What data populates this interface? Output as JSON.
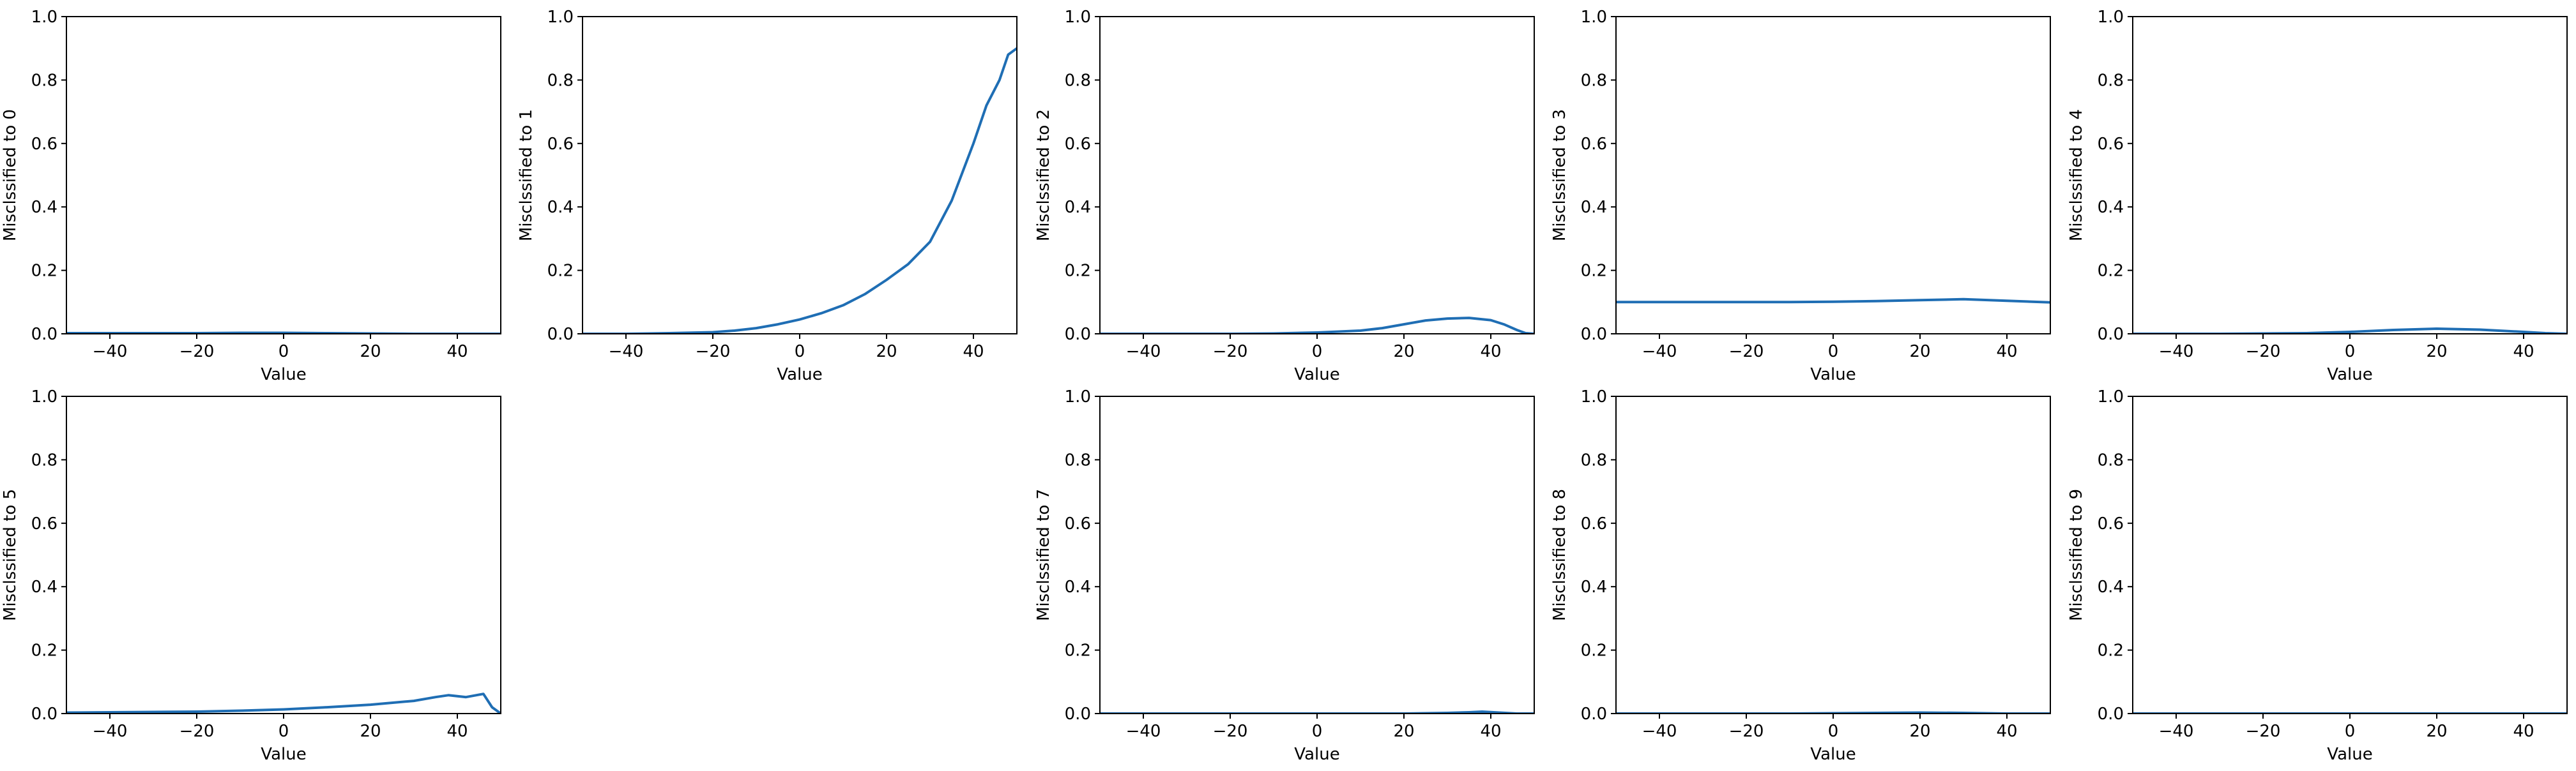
{
  "figure": {
    "line_color": "#1f6eb4",
    "background": "#ffffff",
    "grid": false
  },
  "chart_data": [
    {
      "type": "line",
      "xlabel": "Value",
      "ylabel": "Misclssified to 0",
      "xlim": [
        -50,
        50
      ],
      "ylim": [
        0,
        1
      ],
      "xticks": [
        -40,
        -20,
        0,
        20,
        40
      ],
      "yticks": [
        0.0,
        0.2,
        0.4,
        0.6,
        0.8,
        1.0
      ],
      "xtick_labels": [
        "−40",
        "−20",
        "0",
        "20",
        "40"
      ],
      "ytick_labels": [
        "0.0",
        "0.2",
        "0.4",
        "0.6",
        "0.8",
        "1.0"
      ],
      "series": [
        {
          "x": [
            -50,
            -40,
            -30,
            -20,
            -10,
            0,
            10,
            20,
            30,
            40,
            50
          ],
          "y": [
            0.002,
            0.002,
            0.002,
            0.002,
            0.003,
            0.003,
            0.002,
            0.001,
            0.0,
            0.0,
            0.0
          ]
        }
      ]
    },
    {
      "type": "line",
      "xlabel": "Value",
      "ylabel": "Misclssified to 1",
      "xlim": [
        -50,
        50
      ],
      "ylim": [
        0,
        1
      ],
      "xticks": [
        -40,
        -20,
        0,
        20,
        40
      ],
      "yticks": [
        0.0,
        0.2,
        0.4,
        0.6,
        0.8,
        1.0
      ],
      "xtick_labels": [
        "−40",
        "−20",
        "0",
        "20",
        "40"
      ],
      "ytick_labels": [
        "0.0",
        "0.2",
        "0.4",
        "0.6",
        "0.8",
        "1.0"
      ],
      "series": [
        {
          "x": [
            -50,
            -40,
            -30,
            -20,
            -15,
            -10,
            -5,
            0,
            5,
            10,
            15,
            20,
            25,
            30,
            35,
            40,
            43,
            46,
            48,
            50
          ],
          "y": [
            0.0,
            0.0,
            0.002,
            0.005,
            0.01,
            0.018,
            0.03,
            0.045,
            0.065,
            0.09,
            0.125,
            0.17,
            0.22,
            0.29,
            0.42,
            0.6,
            0.72,
            0.8,
            0.88,
            0.9
          ]
        }
      ]
    },
    {
      "type": "line",
      "xlabel": "Value",
      "ylabel": "Misclssified to 2",
      "xlim": [
        -50,
        50
      ],
      "ylim": [
        0,
        1
      ],
      "xticks": [
        -40,
        -20,
        0,
        20,
        40
      ],
      "yticks": [
        0.0,
        0.2,
        0.4,
        0.6,
        0.8,
        1.0
      ],
      "xtick_labels": [
        "−40",
        "−20",
        "0",
        "20",
        "40"
      ],
      "ytick_labels": [
        "0.0",
        "0.2",
        "0.4",
        "0.6",
        "0.8",
        "1.0"
      ],
      "series": [
        {
          "x": [
            -50,
            -40,
            -30,
            -20,
            -10,
            0,
            10,
            15,
            20,
            25,
            30,
            35,
            40,
            43,
            46,
            48,
            50
          ],
          "y": [
            0.0,
            0.0,
            0.0,
            0.0,
            0.001,
            0.004,
            0.01,
            0.018,
            0.03,
            0.042,
            0.048,
            0.05,
            0.043,
            0.03,
            0.012,
            0.002,
            0.0
          ]
        }
      ]
    },
    {
      "type": "line",
      "xlabel": "Value",
      "ylabel": "Misclssified to 3",
      "xlim": [
        -50,
        50
      ],
      "ylim": [
        0,
        1
      ],
      "xticks": [
        -40,
        -20,
        0,
        20,
        40
      ],
      "yticks": [
        0.0,
        0.2,
        0.4,
        0.6,
        0.8,
        1.0
      ],
      "xtick_labels": [
        "−40",
        "−20",
        "0",
        "20",
        "40"
      ],
      "ytick_labels": [
        "0.0",
        "0.2",
        "0.4",
        "0.6",
        "0.8",
        "1.0"
      ],
      "series": [
        {
          "x": [
            -50,
            -40,
            -30,
            -20,
            -10,
            0,
            10,
            20,
            30,
            40,
            50
          ],
          "y": [
            0.1,
            0.1,
            0.1,
            0.1,
            0.1,
            0.101,
            0.103,
            0.106,
            0.109,
            0.104,
            0.099
          ]
        }
      ]
    },
    {
      "type": "line",
      "xlabel": "Value",
      "ylabel": "Misclssified to 4",
      "xlim": [
        -50,
        50
      ],
      "ylim": [
        0,
        1
      ],
      "xticks": [
        -40,
        -20,
        0,
        20,
        40
      ],
      "yticks": [
        0.0,
        0.2,
        0.4,
        0.6,
        0.8,
        1.0
      ],
      "xtick_labels": [
        "−40",
        "−20",
        "0",
        "20",
        "40"
      ],
      "ytick_labels": [
        "0.0",
        "0.2",
        "0.4",
        "0.6",
        "0.8",
        "1.0"
      ],
      "series": [
        {
          "x": [
            -50,
            -40,
            -30,
            -20,
            -10,
            0,
            10,
            20,
            30,
            40,
            45,
            50
          ],
          "y": [
            0.0,
            0.0,
            0.0,
            0.001,
            0.002,
            0.006,
            0.012,
            0.016,
            0.013,
            0.006,
            0.002,
            0.0
          ]
        }
      ]
    },
    {
      "type": "line",
      "xlabel": "Value",
      "ylabel": "Misclssified to 5",
      "xlim": [
        -50,
        50
      ],
      "ylim": [
        0,
        1
      ],
      "xticks": [
        -40,
        -20,
        0,
        20,
        40
      ],
      "yticks": [
        0.0,
        0.2,
        0.4,
        0.6,
        0.8,
        1.0
      ],
      "xtick_labels": [
        "−40",
        "−20",
        "0",
        "20",
        "40"
      ],
      "ytick_labels": [
        "0.0",
        "0.2",
        "0.4",
        "0.6",
        "0.8",
        "1.0"
      ],
      "series": [
        {
          "x": [
            -50,
            -40,
            -30,
            -20,
            -10,
            0,
            10,
            20,
            30,
            35,
            38,
            42,
            46,
            48,
            50
          ],
          "y": [
            0.003,
            0.004,
            0.005,
            0.006,
            0.009,
            0.013,
            0.02,
            0.028,
            0.04,
            0.052,
            0.058,
            0.052,
            0.062,
            0.02,
            0.0
          ]
        }
      ]
    },
    {
      "type": "line",
      "xlabel": "Value",
      "ylabel": "Misclssified to 7",
      "xlim": [
        -50,
        50
      ],
      "ylim": [
        0,
        1
      ],
      "xticks": [
        -40,
        -20,
        0,
        20,
        40
      ],
      "yticks": [
        0.0,
        0.2,
        0.4,
        0.6,
        0.8,
        1.0
      ],
      "xtick_labels": [
        "−40",
        "−20",
        "0",
        "20",
        "40"
      ],
      "ytick_labels": [
        "0.0",
        "0.2",
        "0.4",
        "0.6",
        "0.8",
        "1.0"
      ],
      "series": [
        {
          "x": [
            -50,
            -40,
            -30,
            -20,
            -10,
            0,
            10,
            20,
            30,
            35,
            38,
            42,
            46,
            50
          ],
          "y": [
            0.0,
            0.0,
            0.0,
            0.0,
            0.0,
            0.0,
            0.0,
            0.0,
            0.002,
            0.004,
            0.006,
            0.003,
            0.0,
            0.0
          ]
        }
      ]
    },
    {
      "type": "line",
      "xlabel": "Value",
      "ylabel": "Misclssified to 8",
      "xlim": [
        -50,
        50
      ],
      "ylim": [
        0,
        1
      ],
      "xticks": [
        -40,
        -20,
        0,
        20,
        40
      ],
      "yticks": [
        0.0,
        0.2,
        0.4,
        0.6,
        0.8,
        1.0
      ],
      "xtick_labels": [
        "−40",
        "−20",
        "0",
        "20",
        "40"
      ],
      "ytick_labels": [
        "0.0",
        "0.2",
        "0.4",
        "0.6",
        "0.8",
        "1.0"
      ],
      "series": [
        {
          "x": [
            -50,
            -40,
            -30,
            -20,
            -10,
            0,
            10,
            20,
            30,
            40,
            50
          ],
          "y": [
            0.0,
            0.0,
            0.0,
            0.0,
            0.0,
            0.001,
            0.002,
            0.003,
            0.002,
            0.0,
            0.0
          ]
        }
      ]
    },
    {
      "type": "line",
      "xlabel": "Value",
      "ylabel": "Misclssified to 9",
      "xlim": [
        -50,
        50
      ],
      "ylim": [
        0,
        1
      ],
      "xticks": [
        -40,
        -20,
        0,
        20,
        40
      ],
      "yticks": [
        0.0,
        0.2,
        0.4,
        0.6,
        0.8,
        1.0
      ],
      "xtick_labels": [
        "−40",
        "−20",
        "0",
        "20",
        "40"
      ],
      "ytick_labels": [
        "0.0",
        "0.2",
        "0.4",
        "0.6",
        "0.8",
        "1.0"
      ],
      "series": [
        {
          "x": [
            -50,
            -40,
            -30,
            -20,
            -10,
            0,
            10,
            20,
            30,
            40,
            50
          ],
          "y": [
            0.0,
            0.0,
            0.0,
            0.0,
            0.0,
            0.0,
            0.0,
            0.0,
            0.0,
            0.0,
            0.0
          ]
        }
      ]
    }
  ]
}
